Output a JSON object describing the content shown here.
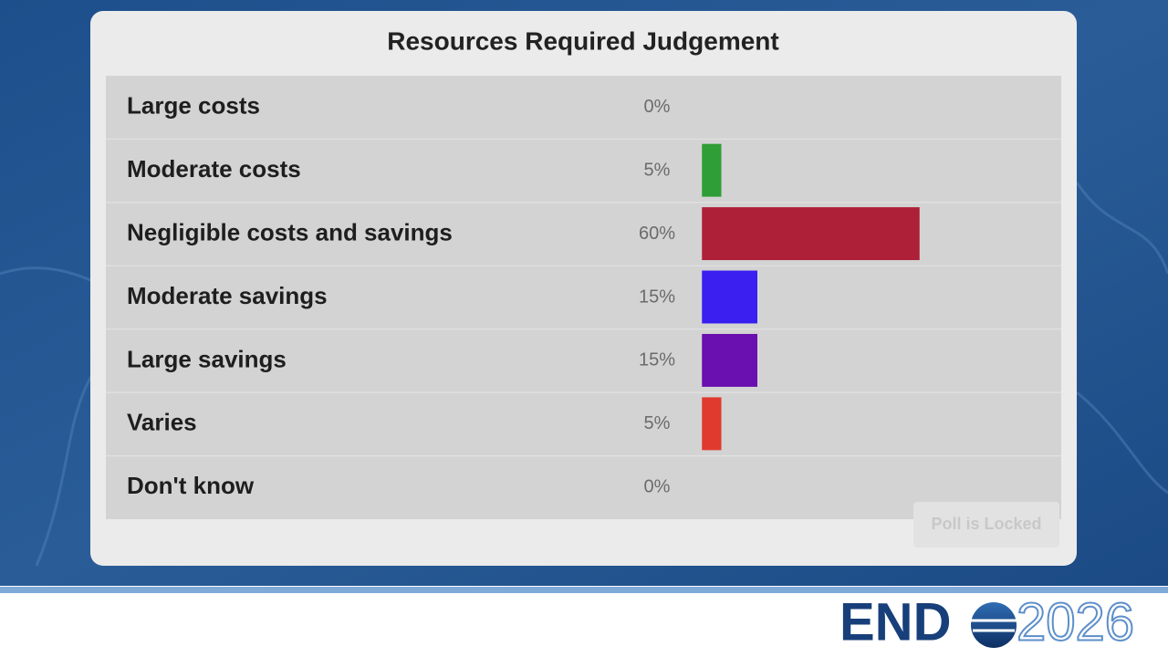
{
  "chart_data": {
    "type": "bar",
    "orientation": "horizontal",
    "title": "Resources Required Judgement",
    "categories": [
      "Large costs",
      "Moderate costs",
      "Negligible costs and savings",
      "Moderate savings",
      "Large savings",
      "Varies",
      "Don't know"
    ],
    "values": [
      0,
      5,
      60,
      15,
      15,
      5,
      0
    ],
    "value_labels": [
      "0%",
      "5%",
      "60%",
      "15%",
      "15%",
      "5%",
      "0%"
    ],
    "colors": [
      "#d9b400",
      "#2f9e36",
      "#ad2038",
      "#3a1ff0",
      "#6a0fb0",
      "#e03a2e",
      "#8c3a8c"
    ],
    "xlim": [
      0,
      100
    ]
  },
  "poll_status": "Poll is Locked",
  "logo": {
    "brand": "END",
    "year": "2026"
  }
}
